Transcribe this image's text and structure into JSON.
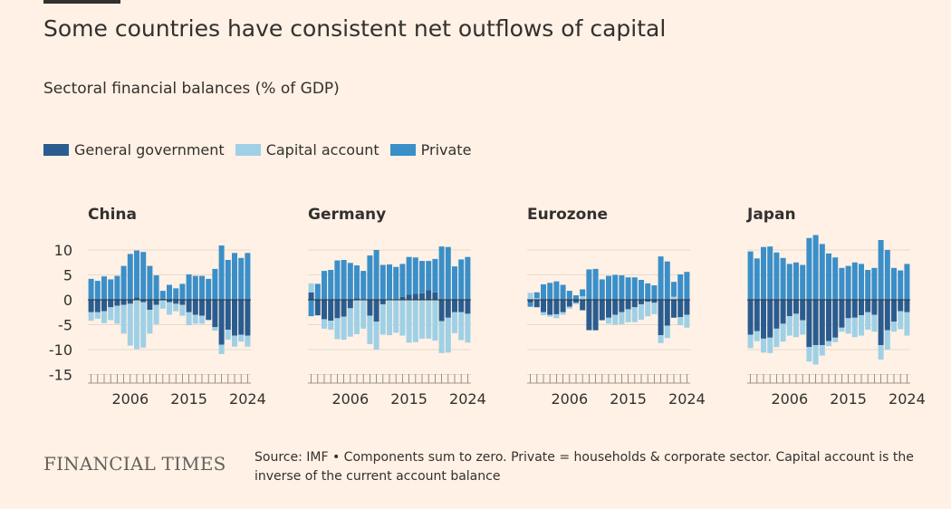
{
  "title": "Some countries have consistent net outflows of capital",
  "subtitle": "Sectoral financial balances (% of GDP)",
  "legend": [
    {
      "label": "General government",
      "color": "#2a5c8f"
    },
    {
      "label": "Capital account",
      "color": "#9fd0e6"
    },
    {
      "label": "Private",
      "color": "#3a8fc9"
    }
  ],
  "footer": {
    "logo": "FINANCIAL TIMES",
    "source": "Source: IMF • Components sum to zero. Private = households & corporate sector. Capital account is the inverse of the current account balance"
  },
  "colors": {
    "government": "#2a5c8f",
    "capital": "#9fd0e6",
    "private": "#3a8fc9",
    "text": "#33302e",
    "grid": "#e6d9ce",
    "zero": "#33302e"
  },
  "chart_data": [
    {
      "type": "bar",
      "stacked": true,
      "panel": "China",
      "x": [
        2000,
        2001,
        2002,
        2003,
        2004,
        2005,
        2006,
        2007,
        2008,
        2009,
        2010,
        2011,
        2012,
        2013,
        2014,
        2015,
        2016,
        2017,
        2018,
        2019,
        2020,
        2021,
        2022,
        2023,
        2024
      ],
      "series": [
        {
          "name": "General government",
          "values": [
            -2.5,
            -2.5,
            -2.3,
            -1.5,
            -1.2,
            -1.0,
            -0.8,
            0.5,
            -0.5,
            -2.0,
            -1.0,
            0.2,
            -0.5,
            -0.8,
            -1.0,
            -2.5,
            -3.0,
            -3.2,
            -4.0,
            -5.5,
            -9.0,
            -6.0,
            -7.2,
            -7.0,
            -7.2
          ]
        },
        {
          "name": "Capital account",
          "values": [
            -1.7,
            -1.3,
            -2.4,
            -2.6,
            -3.6,
            -5.8,
            -8.4,
            -9.9,
            -9.1,
            -4.8,
            -3.9,
            -1.8,
            -2.5,
            -1.5,
            -2.2,
            -2.6,
            -1.8,
            -1.6,
            -0.2,
            -0.7,
            -1.9,
            -2.0,
            -2.2,
            -1.4,
            -2.2
          ]
        },
        {
          "name": "Private",
          "values": [
            4.2,
            3.8,
            4.7,
            4.1,
            4.8,
            6.8,
            9.2,
            9.4,
            9.6,
            6.8,
            4.9,
            1.6,
            3.0,
            2.3,
            3.2,
            5.1,
            4.8,
            4.8,
            4.2,
            6.2,
            10.9,
            8.0,
            9.4,
            8.4,
            9.4
          ]
        }
      ]
    },
    {
      "type": "bar",
      "stacked": true,
      "panel": "Germany",
      "x": [
        2000,
        2001,
        2002,
        2003,
        2004,
        2005,
        2006,
        2007,
        2008,
        2009,
        2010,
        2011,
        2012,
        2013,
        2014,
        2015,
        2016,
        2017,
        2018,
        2019,
        2020,
        2021,
        2022,
        2023,
        2024
      ],
      "series": [
        {
          "name": "General government",
          "values": [
            1.5,
            -3.1,
            -3.9,
            -4.2,
            -3.7,
            -3.4,
            -1.7,
            0.3,
            -0.1,
            -3.2,
            -4.4,
            -0.9,
            0.0,
            0.0,
            0.6,
            1.0,
            1.2,
            1.3,
            1.9,
            1.5,
            -4.3,
            -3.6,
            -2.5,
            -2.5,
            -2.8
          ]
        },
        {
          "name": "Capital account",
          "values": [
            1.8,
            -0.1,
            -1.9,
            -1.8,
            -4.2,
            -4.6,
            -5.7,
            -6.9,
            -5.7,
            -5.7,
            -5.6,
            -6.1,
            -7.1,
            -6.6,
            -7.2,
            -8.6,
            -8.5,
            -7.8,
            -7.8,
            -8.2,
            -6.4,
            -7.0,
            -4.2,
            -5.6,
            -5.8
          ]
        },
        {
          "name": "Private",
          "values": [
            -3.3,
            3.2,
            5.8,
            6.0,
            7.9,
            8.0,
            7.4,
            6.6,
            5.8,
            8.9,
            10.0,
            7.0,
            7.1,
            6.6,
            6.6,
            7.6,
            7.3,
            6.5,
            5.9,
            6.7,
            10.7,
            10.6,
            6.7,
            8.1,
            8.6
          ]
        }
      ]
    },
    {
      "type": "bar",
      "stacked": true,
      "panel": "Eurozone",
      "x": [
        2000,
        2001,
        2002,
        2003,
        2004,
        2005,
        2006,
        2007,
        2008,
        2009,
        2010,
        2011,
        2012,
        2013,
        2014,
        2015,
        2016,
        2017,
        2018,
        2019,
        2020,
        2021,
        2022,
        2023,
        2024
      ],
      "series": [
        {
          "name": "General government",
          "values": [
            -0.6,
            -1.5,
            -2.5,
            -3.0,
            -2.9,
            -2.5,
            -1.4,
            -0.6,
            -2.1,
            -6.1,
            -6.1,
            -4.1,
            -3.6,
            -3.0,
            -2.5,
            -1.9,
            -1.5,
            -0.9,
            -0.4,
            -0.6,
            -7.1,
            -5.2,
            -3.6,
            -3.5,
            -3.0
          ]
        },
        {
          "name": "Capital account",
          "values": [
            1.4,
            0.3,
            -0.6,
            -0.4,
            -0.8,
            -0.5,
            -0.4,
            -0.3,
            0.7,
            0.0,
            -0.1,
            0.0,
            -1.2,
            -2.0,
            -2.4,
            -2.6,
            -3.0,
            -3.1,
            -2.9,
            -2.3,
            -1.6,
            -2.5,
            0.6,
            -1.6,
            -2.6
          ]
        },
        {
          "name": "Private",
          "values": [
            -0.8,
            1.2,
            3.1,
            3.4,
            3.7,
            3.0,
            1.8,
            0.9,
            1.4,
            6.1,
            6.2,
            4.1,
            4.8,
            5.0,
            4.9,
            4.5,
            4.5,
            4.0,
            3.3,
            2.9,
            8.7,
            7.7,
            3.0,
            5.1,
            5.6
          ]
        }
      ]
    },
    {
      "type": "bar",
      "stacked": true,
      "panel": "Japan",
      "x": [
        2000,
        2001,
        2002,
        2003,
        2004,
        2005,
        2006,
        2007,
        2008,
        2009,
        2010,
        2011,
        2012,
        2013,
        2014,
        2015,
        2016,
        2017,
        2018,
        2019,
        2020,
        2021,
        2022,
        2023,
        2024
      ],
      "series": [
        {
          "name": "General government",
          "values": [
            -7.0,
            -6.3,
            -7.8,
            -7.6,
            -5.8,
            -4.8,
            -3.3,
            -2.8,
            -4.1,
            -9.5,
            -9.1,
            -9.1,
            -8.3,
            -7.6,
            -5.6,
            -3.7,
            -3.6,
            -3.1,
            -2.5,
            -3.0,
            -9.1,
            -6.1,
            -4.4,
            -2.3,
            -2.5
          ]
        },
        {
          "name": "Capital account",
          "values": [
            -2.7,
            -2.0,
            -2.8,
            -3.1,
            -3.7,
            -3.6,
            -3.9,
            -4.7,
            -2.9,
            -2.9,
            -3.9,
            -2.1,
            -1.0,
            -0.9,
            -0.8,
            -3.1,
            -3.9,
            -4.1,
            -3.5,
            -3.4,
            -2.9,
            -3.9,
            -2.0,
            -3.6,
            -4.7
          ]
        },
        {
          "name": "Private",
          "values": [
            9.7,
            8.3,
            10.6,
            10.7,
            9.5,
            8.4,
            7.2,
            7.5,
            7.0,
            12.4,
            13.0,
            11.2,
            9.3,
            8.5,
            6.4,
            6.8,
            7.5,
            7.2,
            6.0,
            6.4,
            12.0,
            10.0,
            6.4,
            5.9,
            7.2
          ]
        }
      ]
    }
  ],
  "axes": {
    "y_ticks": [
      10,
      5,
      0,
      -5,
      -10,
      -15
    ],
    "y_tick_labels": [
      "10",
      "5",
      "0",
      "-5",
      "-10",
      "-15"
    ],
    "ylim": [
      -15,
      12
    ],
    "x_tick_labels": [
      "2006",
      "2015",
      "2024"
    ],
    "x_tick_label_years": [
      2006,
      2015,
      2024
    ]
  }
}
